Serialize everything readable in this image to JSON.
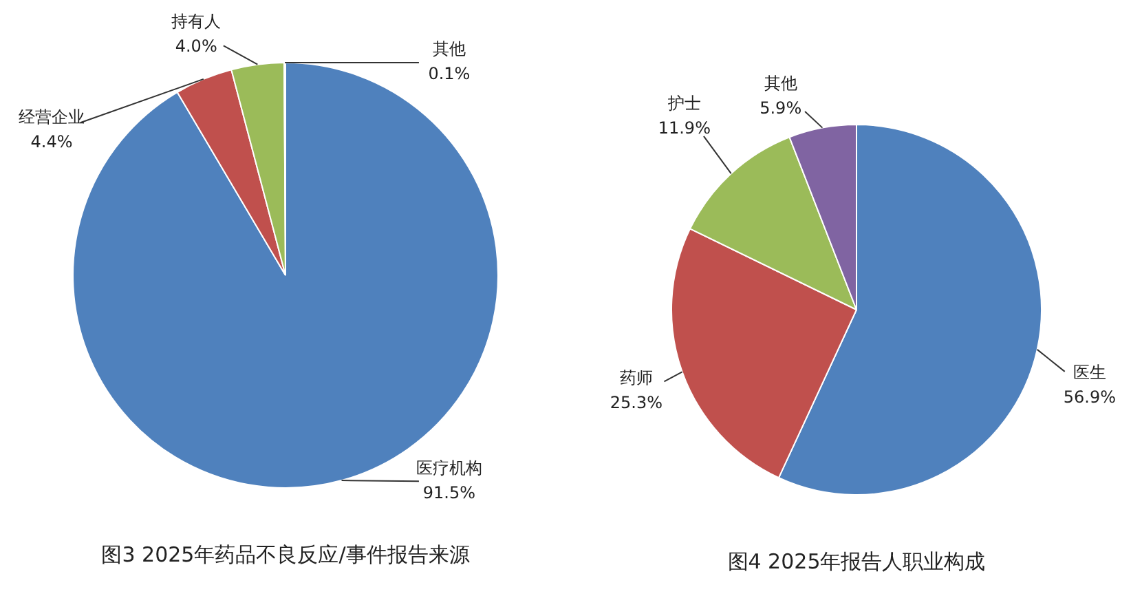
{
  "chart_data": [
    {
      "type": "pie",
      "title": "图3 2025年药品不良反应/事件报告来源",
      "categories": [
        "医疗机构",
        "经营企业",
        "持有人",
        "其他"
      ],
      "values": [
        91.5,
        4.4,
        4.0,
        0.1
      ],
      "value_labels": [
        "91.5%",
        "4.4%",
        "4.0%",
        "0.1%"
      ],
      "colors": [
        "#4f81bd",
        "#c0504d",
        "#9bbb59",
        "#8064a2"
      ],
      "legend": false
    },
    {
      "type": "pie",
      "title": "图4 2025年报告人职业构成",
      "categories": [
        "医生",
        "药师",
        "护士",
        "其他"
      ],
      "values": [
        56.9,
        25.3,
        11.9,
        5.9
      ],
      "value_labels": [
        "56.9%",
        "25.3%",
        "11.9%",
        "5.9%"
      ],
      "colors": [
        "#4f81bd",
        "#c0504d",
        "#9bbb59",
        "#8064a2"
      ],
      "legend": false
    }
  ]
}
